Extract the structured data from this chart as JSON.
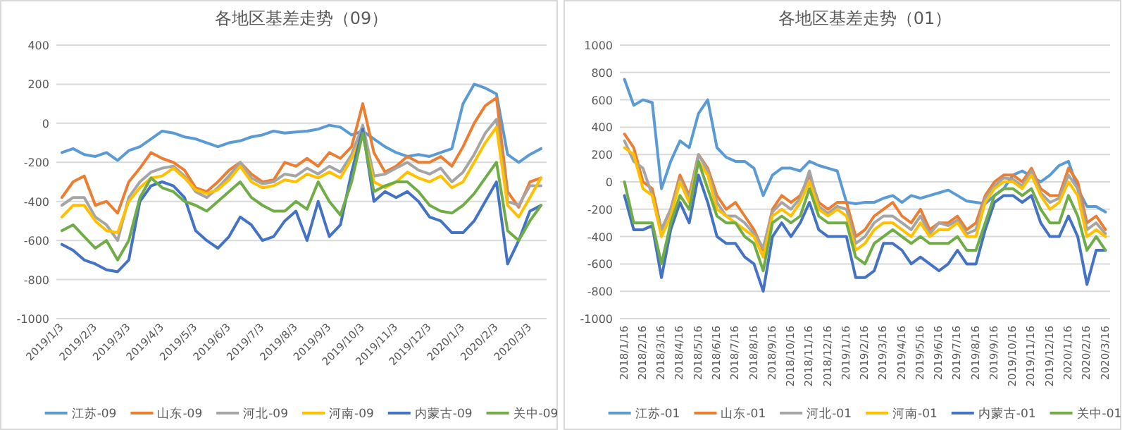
{
  "chart_data": [
    {
      "type": "line",
      "title": "各地区基差走势（09）",
      "grid": "y",
      "legend": "bottom",
      "ylim": [
        -1000,
        400
      ],
      "yticks": [
        -1000,
        -800,
        -600,
        -400,
        -200,
        0,
        200,
        400
      ],
      "categories": [
        "2019/1/3",
        null,
        null,
        "2019/2/3",
        null,
        null,
        "2019/3/3",
        null,
        null,
        "2019/4/3",
        null,
        null,
        "2019/5/3",
        null,
        null,
        "2019/6/3",
        null,
        null,
        "2019/7/3",
        null,
        null,
        "2019/8/3",
        null,
        null,
        "2019/9/3",
        null,
        null,
        "2019/10/3",
        null,
        null,
        "2019/11/3",
        null,
        null,
        "2019/12/3",
        null,
        null,
        "2020/1/3",
        null,
        null,
        "2020/2/3",
        null,
        null,
        "2020/3/3",
        null
      ],
      "series": [
        {
          "name": "江苏-09",
          "color": "#5b9bd5",
          "values": [
            -150,
            -130,
            -160,
            -170,
            -150,
            -190,
            -140,
            -120,
            -80,
            -40,
            -50,
            -70,
            -80,
            -100,
            -120,
            -100,
            -90,
            -70,
            -60,
            -40,
            -50,
            -45,
            -40,
            -30,
            -10,
            -20,
            -60,
            -40,
            -80,
            -120,
            -150,
            -170,
            -160,
            -170,
            -150,
            -130,
            100,
            200,
            180,
            150,
            -160,
            -200,
            -160,
            -130
          ]
        },
        {
          "name": "山东-09",
          "color": "#ed7d31",
          "values": [
            -380,
            -300,
            -270,
            -420,
            -400,
            -460,
            -300,
            -230,
            -150,
            -180,
            -200,
            -240,
            -330,
            -350,
            -300,
            -240,
            -200,
            -260,
            -300,
            -290,
            -200,
            -220,
            -180,
            -220,
            -150,
            -180,
            -120,
            100,
            -150,
            -250,
            -220,
            -170,
            -200,
            -200,
            -170,
            -220,
            -120,
            0,
            90,
            130,
            -350,
            -430,
            -300,
            -280
          ]
        },
        {
          "name": "河北-09",
          "color": "#a5a5a5",
          "values": [
            -420,
            -380,
            -380,
            -480,
            -520,
            -600,
            -380,
            -300,
            -250,
            -230,
            -220,
            -270,
            -350,
            -380,
            -330,
            -270,
            -200,
            -280,
            -310,
            -300,
            -260,
            -270,
            -230,
            -260,
            -220,
            -250,
            -160,
            -10,
            -270,
            -260,
            -230,
            -200,
            -240,
            -260,
            -230,
            -300,
            -250,
            -160,
            -50,
            20,
            -400,
            -420,
            -320,
            -320
          ]
        },
        {
          "name": "河南-09",
          "color": "#ffc000",
          "values": [
            -480,
            -420,
            -420,
            -500,
            -550,
            -560,
            -400,
            -330,
            -280,
            -270,
            -230,
            -280,
            -340,
            -360,
            -340,
            -290,
            -220,
            -300,
            -330,
            -320,
            -290,
            -300,
            -260,
            -280,
            -250,
            -280,
            -180,
            -60,
            -300,
            -330,
            -300,
            -250,
            -280,
            -300,
            -270,
            -330,
            -300,
            -200,
            -100,
            -20,
            -420,
            -480,
            -380,
            -280
          ]
        },
        {
          "name": "内蒙古-09",
          "color": "#4472c4",
          "values": [
            -620,
            -650,
            -700,
            -720,
            -750,
            -760,
            -700,
            -400,
            -320,
            -300,
            -320,
            -380,
            -550,
            -600,
            -640,
            -580,
            -480,
            -520,
            -600,
            -580,
            -500,
            -450,
            -600,
            -400,
            -580,
            -520,
            -250,
            -30,
            -400,
            -350,
            -380,
            -350,
            -400,
            -480,
            -500,
            -560,
            -560,
            -500,
            -400,
            -300,
            -720,
            -600,
            -450,
            -420
          ]
        },
        {
          "name": "关中-09",
          "color": "#70ad47",
          "values": [
            -550,
            -520,
            -580,
            -640,
            -600,
            -700,
            -600,
            -380,
            -280,
            -330,
            -350,
            -400,
            -420,
            -450,
            -400,
            -350,
            -300,
            -380,
            -420,
            -450,
            -450,
            -400,
            -440,
            -300,
            -400,
            -470,
            -300,
            -50,
            -350,
            -320,
            -300,
            -300,
            -350,
            -420,
            -450,
            -460,
            -420,
            -360,
            -280,
            -200,
            -550,
            -600,
            -500,
            -420
          ]
        }
      ]
    },
    {
      "type": "line",
      "title": "各地区基差走势（01）",
      "grid": "y",
      "legend": "bottom",
      "ylim": [
        -1000,
        1000
      ],
      "yticks": [
        -1000,
        -800,
        -600,
        -400,
        -200,
        0,
        200,
        400,
        600,
        800,
        1000
      ],
      "categories": [
        "2018/1/16",
        null,
        "2018/2/16",
        null,
        "2018/3/16",
        null,
        "2018/4/16",
        null,
        "2018/5/16",
        null,
        "2018/6/16",
        null,
        "2018/7/16",
        null,
        "2018/8/16",
        null,
        "2018/9/16",
        null,
        "2018/10/16",
        null,
        "2018/11/16",
        null,
        "2018/12/16",
        null,
        "2019/1/16",
        null,
        "2019/2/16",
        null,
        "2019/3/16",
        null,
        "2019/4/16",
        null,
        "2019/5/16",
        null,
        "2019/6/16",
        null,
        "2019/7/16",
        null,
        "2019/8/16",
        null,
        "2019/9/16",
        null,
        "2019/10/16",
        null,
        "2019/11/16",
        null,
        "2019/12/16",
        null,
        "2020/1/16",
        null,
        "2020/2/16",
        null,
        "2020/3/16"
      ],
      "series": [
        {
          "name": "江苏-01",
          "color": "#5b9bd5",
          "values": [
            750,
            560,
            600,
            580,
            -50,
            150,
            300,
            250,
            500,
            600,
            250,
            180,
            150,
            150,
            100,
            -100,
            50,
            100,
            100,
            80,
            150,
            120,
            100,
            80,
            -150,
            -160,
            -150,
            -150,
            -120,
            -100,
            -150,
            -100,
            -120,
            -100,
            -80,
            -60,
            -100,
            -140,
            -150,
            -160,
            -100,
            -50,
            50,
            80,
            40,
            0,
            50,
            120,
            150,
            -50,
            -180,
            -180,
            -220
          ]
        },
        {
          "name": "山东-01",
          "color": "#ed7d31",
          "values": [
            350,
            250,
            0,
            -50,
            -350,
            -200,
            50,
            -100,
            200,
            100,
            -100,
            -200,
            -150,
            -250,
            -350,
            -500,
            -200,
            -100,
            -150,
            -100,
            50,
            -150,
            -200,
            -150,
            -150,
            -400,
            -350,
            -250,
            -200,
            -150,
            -250,
            -300,
            -200,
            -350,
            -300,
            -300,
            -250,
            -350,
            -300,
            -100,
            0,
            50,
            50,
            0,
            100,
            -50,
            -100,
            -100,
            100,
            0,
            -300,
            -250,
            -350
          ]
        },
        {
          "name": "河北-01",
          "color": "#a5a5a5",
          "values": [
            300,
            150,
            100,
            -100,
            -350,
            -200,
            20,
            -120,
            200,
            80,
            -150,
            -250,
            -250,
            -300,
            -380,
            -480,
            -220,
            -150,
            -200,
            -120,
            80,
            -180,
            -230,
            -180,
            -200,
            -450,
            -400,
            -300,
            -250,
            -250,
            -300,
            -350,
            -250,
            -380,
            -300,
            -320,
            -280,
            -380,
            -350,
            -120,
            -30,
            30,
            20,
            -30,
            80,
            -80,
            -150,
            -120,
            50,
            -50,
            -350,
            -300,
            -380
          ]
        },
        {
          "name": "河南-01",
          "color": "#ffc000",
          "values": [
            250,
            200,
            -50,
            -100,
            -400,
            -250,
            0,
            -150,
            150,
            50,
            -200,
            -250,
            -300,
            -350,
            -400,
            -550,
            -250,
            -200,
            -250,
            -150,
            0,
            -200,
            -250,
            -200,
            -250,
            -500,
            -450,
            -350,
            -300,
            -300,
            -350,
            -400,
            -300,
            -400,
            -350,
            -350,
            -300,
            -400,
            -400,
            -150,
            -50,
            0,
            0,
            -50,
            50,
            -100,
            -200,
            -150,
            0,
            -100,
            -400,
            -350,
            -400
          ]
        },
        {
          "name": "内蒙古-01",
          "color": "#4472c4",
          "values": [
            -100,
            -350,
            -350,
            -320,
            -700,
            -350,
            -150,
            -300,
            50,
            -150,
            -400,
            -450,
            -450,
            -550,
            -600,
            -800,
            -400,
            -300,
            -400,
            -300,
            -150,
            -350,
            -400,
            -400,
            -400,
            -700,
            -700,
            -650,
            -450,
            -450,
            -500,
            -600,
            -550,
            -600,
            -650,
            -600,
            -500,
            -600,
            -600,
            -350,
            -150,
            -100,
            -100,
            -150,
            -100,
            -300,
            -400,
            -400,
            -250,
            -400,
            -750,
            -500,
            -500
          ]
        },
        {
          "name": "关中-01",
          "color": "#70ad47",
          "values": [
            0,
            -300,
            -300,
            -300,
            -600,
            -300,
            -100,
            -200,
            150,
            -50,
            -250,
            -300,
            -300,
            -400,
            -450,
            -650,
            -300,
            -250,
            -300,
            -250,
            -50,
            -250,
            -300,
            -300,
            -300,
            -550,
            -600,
            -450,
            -400,
            -350,
            -400,
            -450,
            -400,
            -450,
            -450,
            -450,
            -400,
            -500,
            -500,
            -300,
            -100,
            -50,
            -50,
            -100,
            -50,
            -200,
            -300,
            -300,
            -100,
            -250,
            -500,
            -400,
            -500
          ]
        }
      ]
    }
  ]
}
